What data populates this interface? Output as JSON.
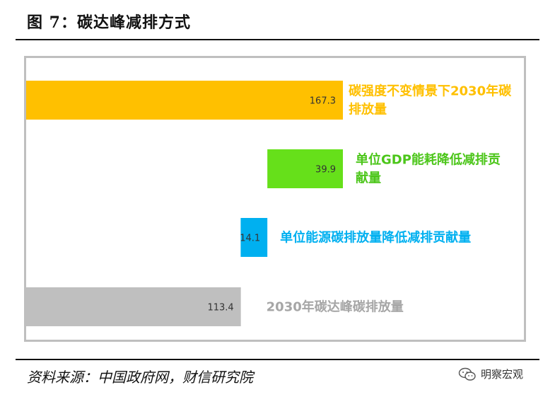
{
  "figure": {
    "title": "图 7：碳达峰减排方式",
    "source": "资料来源：中国政府网，财信研究院",
    "watermark": "明察宏观"
  },
  "chart_data": {
    "type": "bar",
    "orientation": "horizontal-waterfall",
    "categories": [
      "碳强度不变情景下2030年碳排放量",
      "单位GDP能耗降低减排贡献量",
      "单位能源碳排放量降低减排贡献量",
      "2030年碳达峰碳排放量"
    ],
    "values": [
      167.3,
      39.9,
      14.1,
      113.4
    ],
    "value_labels": [
      "167.3",
      "39.9",
      "14.1",
      "113.4"
    ],
    "label_lines": [
      [
        "碳强度不变情景下2030年碳",
        "排放量"
      ],
      [
        "单位GDP能耗降低减排贡",
        "献量"
      ],
      [
        "单位能源碳排放量降低减排贡献量"
      ],
      [
        "2030年碳达峰碳排放量"
      ]
    ],
    "colors": [
      "#FFC000",
      "#66E01A",
      "#00B0F0",
      "#BFBFBF"
    ],
    "xlim": [
      0,
      167.3
    ],
    "grid": false,
    "legend": "none"
  }
}
